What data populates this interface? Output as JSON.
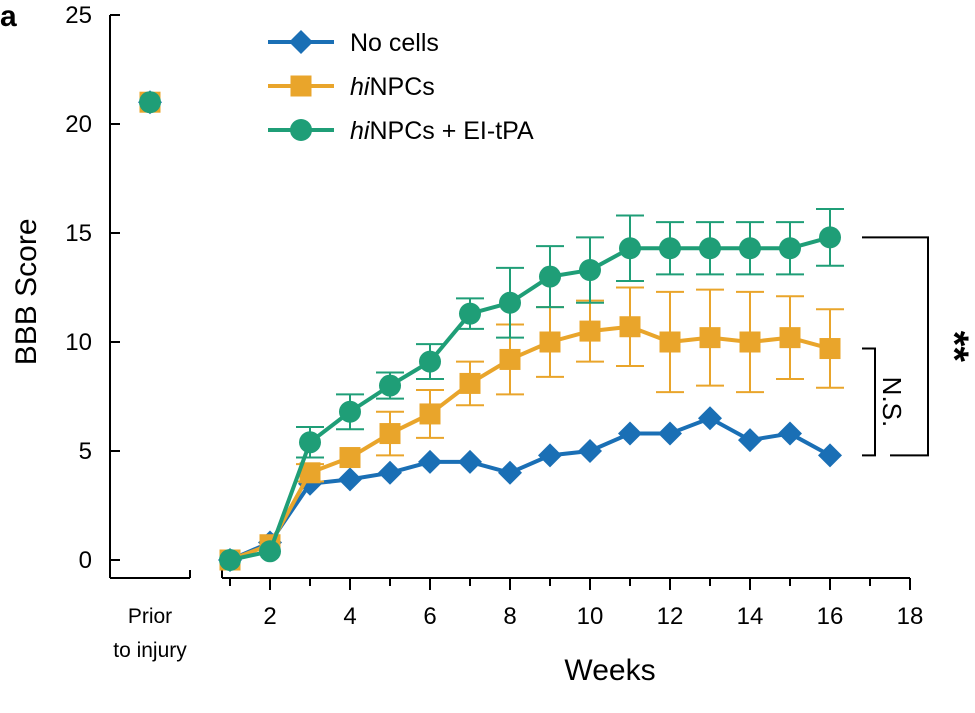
{
  "panel_label": "a",
  "chart_data": {
    "type": "line",
    "title": "",
    "xlabel": "Weeks",
    "ylabel": "BBB Score",
    "xlim": [
      1,
      18
    ],
    "ylim": [
      0,
      25
    ],
    "x_ticks": [
      2,
      4,
      6,
      8,
      10,
      12,
      14,
      16,
      18
    ],
    "y_ticks": [
      0,
      5,
      10,
      15,
      20,
      25
    ],
    "baseline_label_line1": "Prior",
    "baseline_label_line2": "to injury",
    "legend_position": "top-center",
    "grid": false,
    "series": [
      {
        "name": "No cells",
        "name_italic": "",
        "name_rest": "No cells",
        "color": "#1a6fb5",
        "marker": "diamond",
        "baseline": 21,
        "x": [
          1,
          2,
          3,
          4,
          5,
          6,
          7,
          8,
          9,
          10,
          11,
          12,
          13,
          14,
          15,
          16
        ],
        "y": [
          0,
          0.8,
          3.5,
          3.7,
          4.0,
          4.5,
          4.5,
          4.0,
          4.8,
          5.0,
          5.8,
          5.8,
          6.5,
          5.5,
          5.8,
          4.8
        ],
        "err": [
          0,
          0,
          0,
          0,
          0,
          0,
          0,
          0,
          0,
          0,
          0,
          0,
          0,
          0,
          0,
          0
        ]
      },
      {
        "name": "hiNPCs",
        "name_italic": "hi",
        "name_rest": "NPCs",
        "color": "#e9a52b",
        "marker": "square",
        "baseline": 21,
        "x": [
          1,
          2,
          3,
          4,
          5,
          6,
          7,
          8,
          9,
          10,
          11,
          12,
          13,
          14,
          15,
          16
        ],
        "y": [
          0,
          0.7,
          4.0,
          4.7,
          5.8,
          6.7,
          8.1,
          9.2,
          10.0,
          10.5,
          10.7,
          10.0,
          10.2,
          10.0,
          10.2,
          9.7
        ],
        "err": [
          0,
          0,
          0.4,
          0,
          1.0,
          1.1,
          1.0,
          1.6,
          1.6,
          1.4,
          1.8,
          2.3,
          2.2,
          2.3,
          1.9,
          1.8
        ]
      },
      {
        "name": "hiNPCs + EI-tPA",
        "name_italic": "hi",
        "name_rest": "NPCs + EI-tPA",
        "color": "#1f9e77",
        "marker": "circle",
        "baseline": 21,
        "x": [
          1,
          2,
          3,
          4,
          5,
          6,
          7,
          8,
          9,
          10,
          11,
          12,
          13,
          14,
          15,
          16
        ],
        "y": [
          0,
          0.4,
          5.4,
          6.8,
          8.0,
          9.1,
          11.3,
          11.8,
          13.0,
          13.3,
          14.3,
          14.3,
          14.3,
          14.3,
          14.3,
          14.8
        ],
        "err": [
          0,
          0,
          0.7,
          0.8,
          0.6,
          0.8,
          0.7,
          1.6,
          1.4,
          1.5,
          1.5,
          1.2,
          1.2,
          1.2,
          1.2,
          1.3
        ]
      }
    ],
    "annotations": {
      "ns": "N.S.",
      "sig": "**"
    }
  }
}
